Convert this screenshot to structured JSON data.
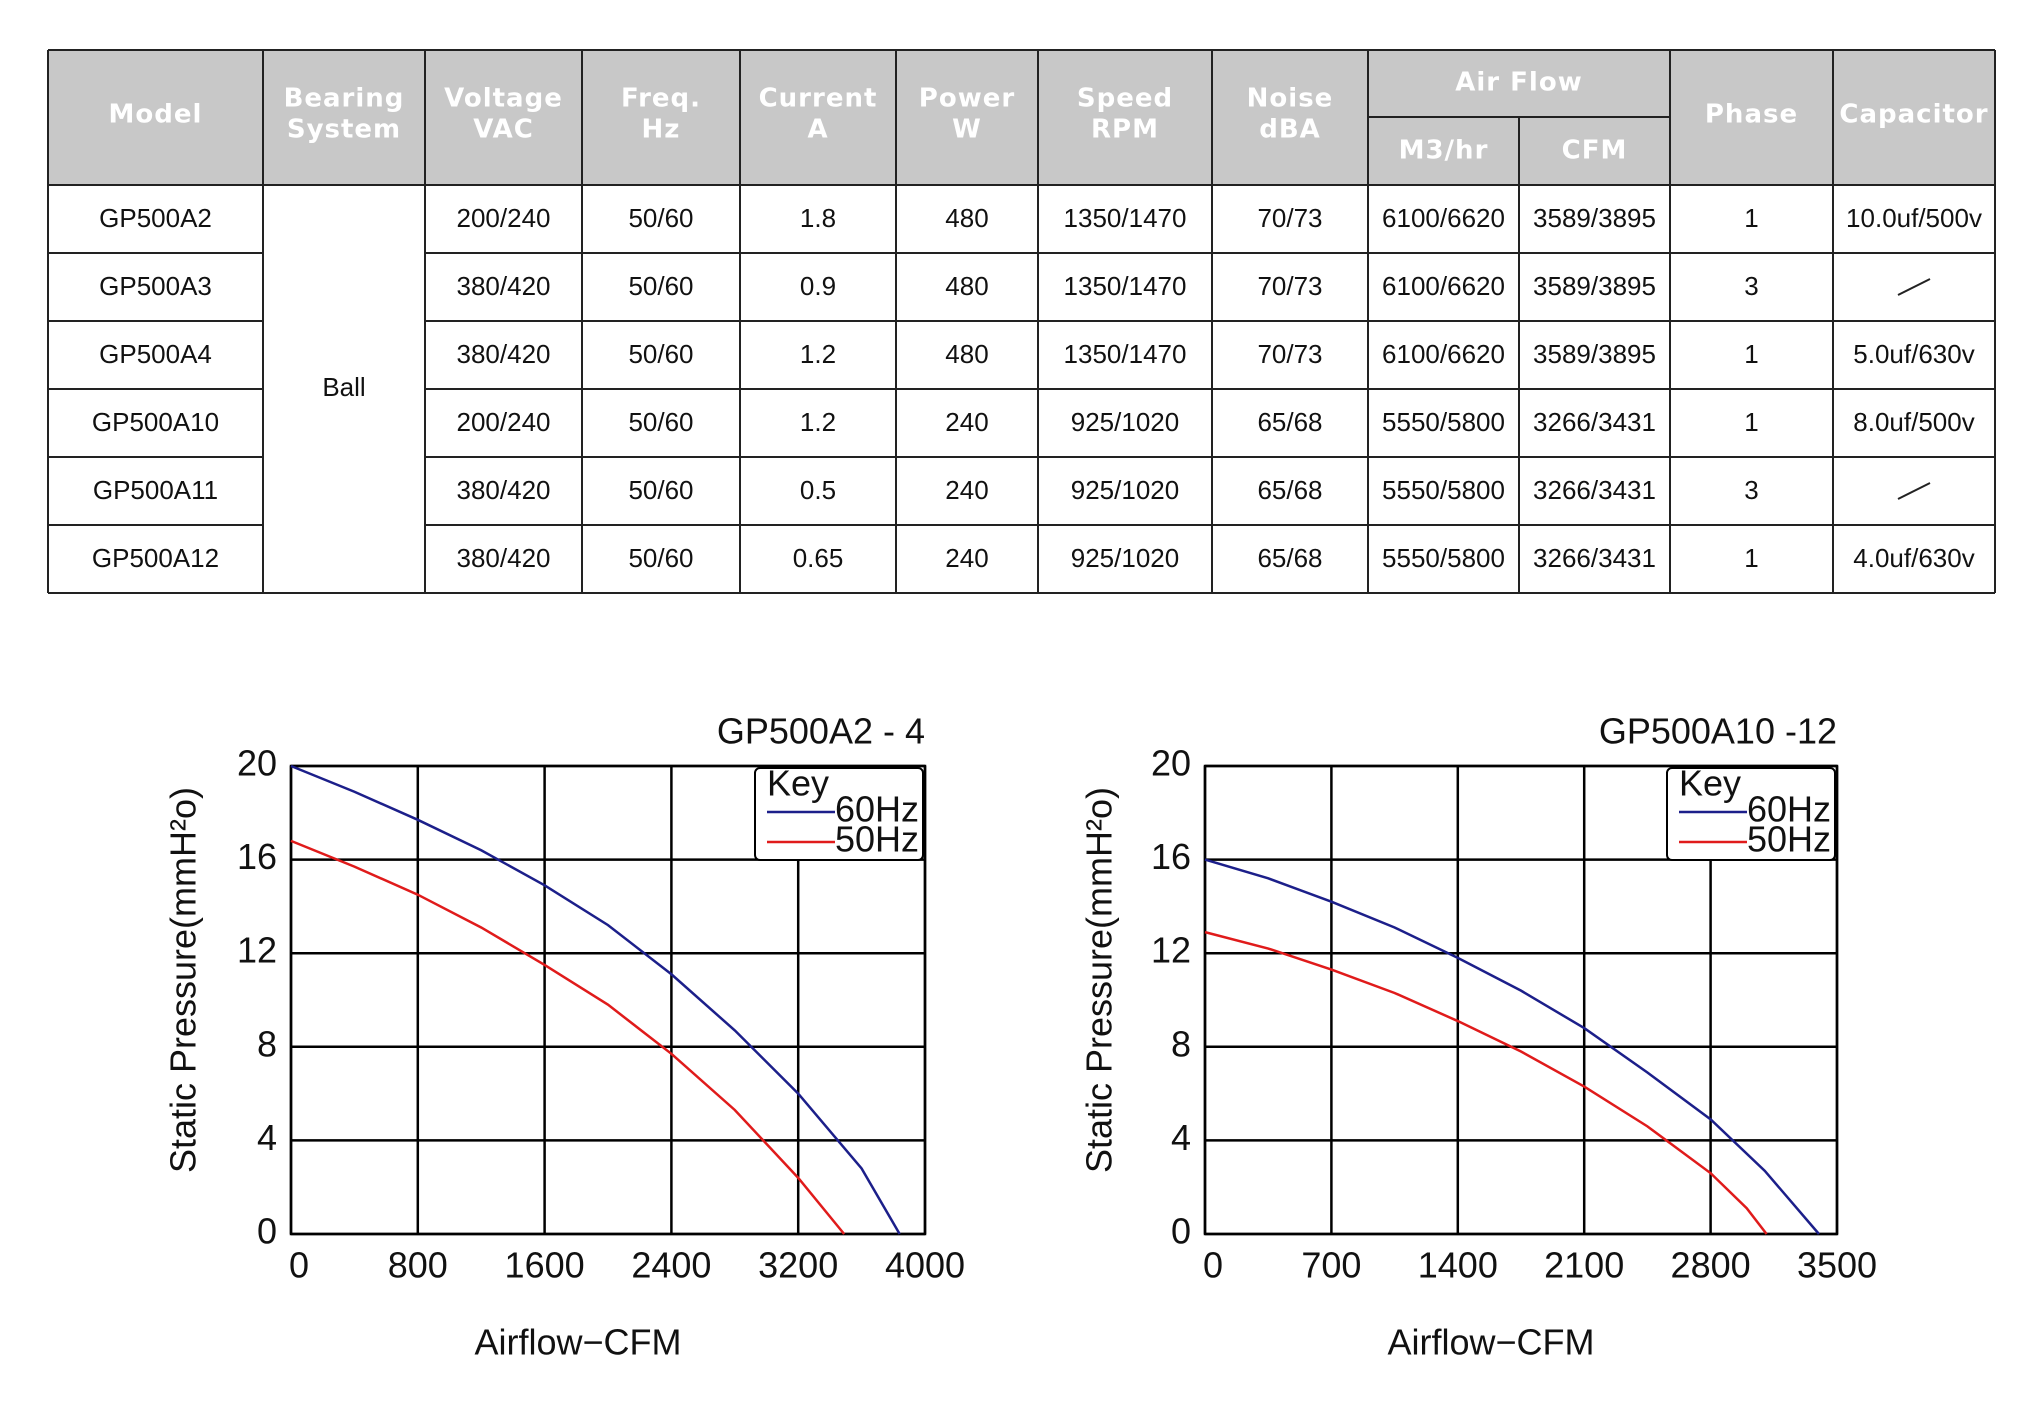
{
  "table": {
    "headers": [
      [
        "Model"
      ],
      [
        "Bearing",
        "System"
      ],
      [
        "Voltage",
        "VAC"
      ],
      [
        "Freq.",
        "Hz"
      ],
      [
        "Current",
        "A"
      ],
      [
        "Power",
        "W"
      ],
      [
        "Speed",
        "RPM"
      ],
      [
        "Noise",
        "dBA"
      ],
      [
        "Air Flow"
      ],
      [
        "Phase"
      ],
      [
        "Capacitor"
      ]
    ],
    "subheaders": [
      "M3/hr",
      "CFM"
    ],
    "bearing": "Ball",
    "rows": [
      [
        "GP500A2",
        "200/240",
        "50/60",
        1.8,
        480,
        "1350/1470",
        "70/73",
        "6100/6620",
        "3589/3895",
        1,
        "10.0uf/500v"
      ],
      [
        "GP500A3",
        "380/420",
        "50/60",
        0.9,
        480,
        "1350/1470",
        "70/73",
        "6100/6620",
        "3589/3895",
        3,
        null
      ],
      [
        "GP500A4",
        "380/420",
        "50/60",
        1.2,
        480,
        "1350/1470",
        "70/73",
        "6100/6620",
        "3589/3895",
        1,
        "5.0uf/630v"
      ],
      [
        "GP500A10",
        "200/240",
        "50/60",
        1.2,
        240,
        "925/1020",
        "65/68",
        "5550/5800",
        "3266/3431",
        1,
        "8.0uf/500v"
      ],
      [
        "GP500A11",
        "380/420",
        "50/60",
        0.5,
        240,
        "925/1020",
        "65/68",
        "5550/5800",
        "3266/3431",
        3,
        null
      ],
      [
        "GP500A12",
        "380/420",
        "50/60",
        0.65,
        240,
        "925/1020",
        "65/68",
        "5550/5800",
        "3266/3431",
        1,
        "4.0uf/630v"
      ]
    ]
  },
  "chart_data": [
    {
      "type": "line",
      "title": "GP500A2 - 4",
      "x_label": "Airflow−CFM",
      "y_label": "Static Pressure(mmH²o)",
      "xlim": [
        0,
        4000
      ],
      "xticks": [
        0,
        800,
        1600,
        2400,
        3200,
        4000
      ],
      "ylim": [
        0,
        20
      ],
      "yticks": [
        0,
        4,
        8,
        12,
        16,
        20
      ],
      "grid": true,
      "legend_title": "Key",
      "legend": "upper right",
      "series": [
        {
          "name": "60Hz",
          "color": "#1c1f8a",
          "x": [
            0,
            400,
            800,
            1200,
            1600,
            2000,
            2400,
            2800,
            3200,
            3600,
            3840
          ],
          "values": [
            20,
            18.9,
            17.7,
            16.4,
            14.9,
            13.2,
            11.1,
            8.7,
            6.0,
            2.8,
            0
          ]
        },
        {
          "name": "50Hz",
          "color": "#e01b1b",
          "x": [
            0,
            400,
            800,
            1200,
            1600,
            2000,
            2400,
            2800,
            3200,
            3490
          ],
          "values": [
            16.8,
            15.7,
            14.5,
            13.1,
            11.5,
            9.8,
            7.7,
            5.3,
            2.4,
            0
          ]
        }
      ]
    },
    {
      "type": "line",
      "title": "GP500A10 -12",
      "x_label": "Airflow−CFM",
      "y_label": "Static Pressure(mmH²o)",
      "xlim": [
        0,
        3500
      ],
      "xticks": [
        0,
        700,
        1400,
        2100,
        2800,
        3500
      ],
      "ylim": [
        0,
        20
      ],
      "yticks": [
        0,
        4,
        8,
        12,
        16,
        20
      ],
      "grid": true,
      "legend_title": "Key",
      "legend": "upper right",
      "series": [
        {
          "name": "60Hz",
          "color": "#1c1f8a",
          "x": [
            0,
            350,
            700,
            1050,
            1400,
            1750,
            2100,
            2450,
            2800,
            3100,
            3400
          ],
          "values": [
            16,
            15.2,
            14.2,
            13.1,
            11.8,
            10.4,
            8.8,
            6.9,
            4.9,
            2.7,
            0
          ]
        },
        {
          "name": "50Hz",
          "color": "#e01b1b",
          "x": [
            0,
            350,
            700,
            1050,
            1400,
            1750,
            2100,
            2450,
            2800,
            3000,
            3110
          ],
          "values": [
            12.9,
            12.2,
            11.3,
            10.3,
            9.1,
            7.8,
            6.3,
            4.6,
            2.6,
            1.1,
            0
          ]
        }
      ]
    }
  ]
}
